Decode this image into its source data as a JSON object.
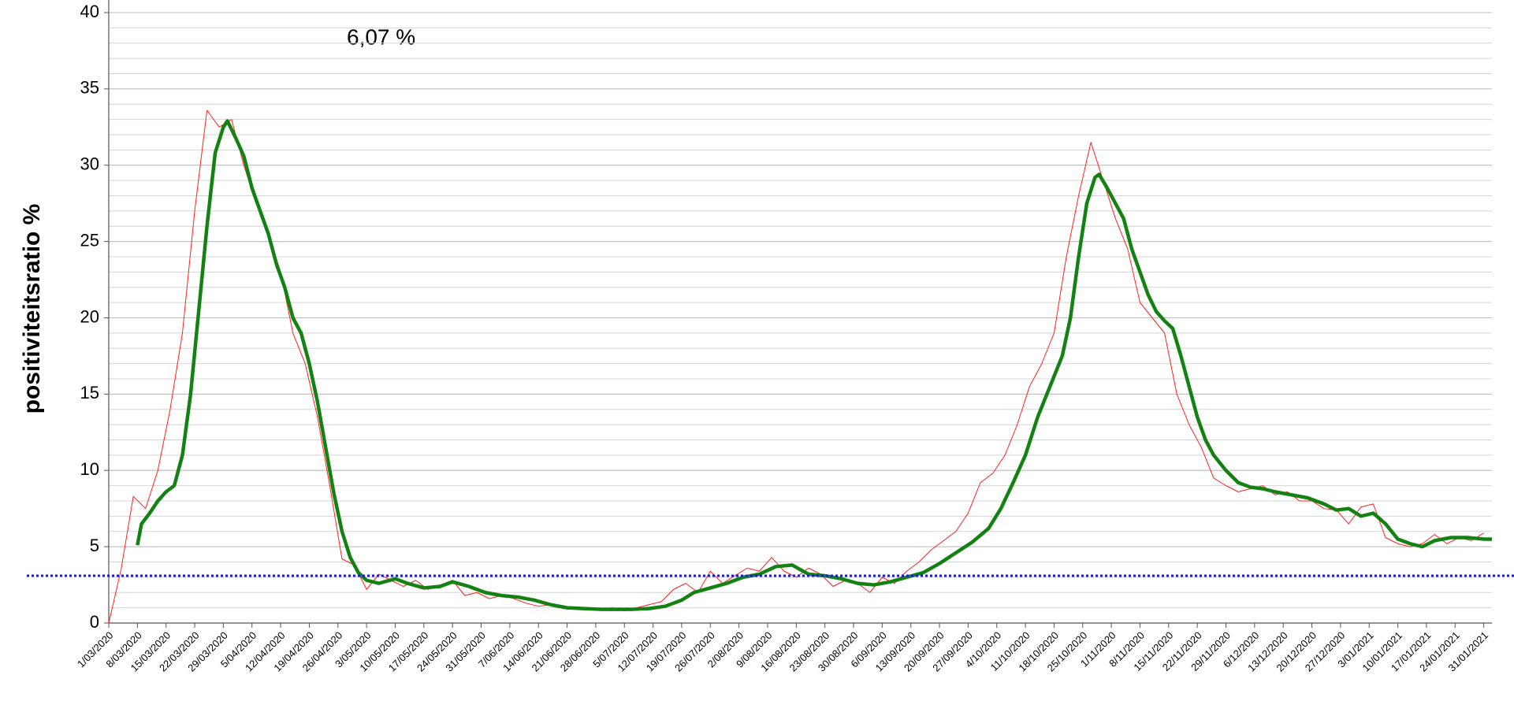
{
  "chart_data": {
    "type": "line",
    "y_label": "positiviteitsratio %",
    "annotation": {
      "text": "6,07 %",
      "color": "#ff1a1a"
    },
    "xlim": [
      0,
      338
    ],
    "xticks": [
      {
        "value": 0,
        "label": "1/03/2020"
      },
      {
        "value": 7,
        "label": "8/03/2020"
      },
      {
        "value": 14,
        "label": "15/03/2020"
      },
      {
        "value": 21,
        "label": "22/03/2020"
      },
      {
        "value": 28,
        "label": "29/03/2020"
      },
      {
        "value": 35,
        "label": "5/04/2020"
      },
      {
        "value": 42,
        "label": "12/04/2020"
      },
      {
        "value": 49,
        "label": "19/04/2020"
      },
      {
        "value": 56,
        "label": "26/04/2020"
      },
      {
        "value": 63,
        "label": "3/05/2020"
      },
      {
        "value": 70,
        "label": "10/05/2020"
      },
      {
        "value": 77,
        "label": "17/05/2020"
      },
      {
        "value": 84,
        "label": "24/05/2020"
      },
      {
        "value": 91,
        "label": "31/05/2020"
      },
      {
        "value": 98,
        "label": "7/06/2020"
      },
      {
        "value": 105,
        "label": "14/06/2020"
      },
      {
        "value": 112,
        "label": "21/06/2020"
      },
      {
        "value": 119,
        "label": "28/06/2020"
      },
      {
        "value": 126,
        "label": "5/07/2020"
      },
      {
        "value": 133,
        "label": "12/07/2020"
      },
      {
        "value": 140,
        "label": "19/07/2020"
      },
      {
        "value": 147,
        "label": "26/07/2020"
      },
      {
        "value": 154,
        "label": "2/08/2020"
      },
      {
        "value": 161,
        "label": "9/08/2020"
      },
      {
        "value": 168,
        "label": "16/08/2020"
      },
      {
        "value": 175,
        "label": "23/08/2020"
      },
      {
        "value": 182,
        "label": "30/08/2020"
      },
      {
        "value": 189,
        "label": "6/09/2020"
      },
      {
        "value": 196,
        "label": "13/09/2020"
      },
      {
        "value": 203,
        "label": "20/09/2020"
      },
      {
        "value": 210,
        "label": "27/09/2020"
      },
      {
        "value": 217,
        "label": "4/10/2020"
      },
      {
        "value": 224,
        "label": "11/10/2020"
      },
      {
        "value": 231,
        "label": "18/10/2020"
      },
      {
        "value": 238,
        "label": "25/10/2020"
      },
      {
        "value": 245,
        "label": "1/11/2020"
      },
      {
        "value": 252,
        "label": "8/11/2020"
      },
      {
        "value": 259,
        "label": "15/11/2020"
      },
      {
        "value": 266,
        "label": "22/11/2020"
      },
      {
        "value": 273,
        "label": "29/11/2020"
      },
      {
        "value": 280,
        "label": "6/12/2020"
      },
      {
        "value": 287,
        "label": "13/12/2020"
      },
      {
        "value": 294,
        "label": "20/12/2020"
      },
      {
        "value": 301,
        "label": "27/12/2020"
      },
      {
        "value": 308,
        "label": "3/01/2021"
      },
      {
        "value": 315,
        "label": "10/01/2021"
      },
      {
        "value": 322,
        "label": "17/01/2021"
      },
      {
        "value": 329,
        "label": "24/01/2021"
      },
      {
        "value": 336,
        "label": "31/01/2021"
      }
    ],
    "ylim": [
      0,
      40
    ],
    "yticks": [
      0,
      5,
      10,
      15,
      20,
      25,
      30,
      35,
      40
    ],
    "grid": true,
    "minor_grid_step": 1,
    "reference_line": {
      "value": 3.1,
      "color": "#1a1ad6"
    },
    "series": [
      {
        "color": "#ff2020",
        "width": 1,
        "x": [
          0,
          3,
          6,
          9,
          12,
          15,
          18,
          21,
          24,
          27,
          30,
          33,
          36,
          39,
          42,
          45,
          48,
          51,
          54,
          57,
          60,
          63,
          66,
          69,
          72,
          75,
          78,
          81,
          84,
          87,
          90,
          93,
          96,
          99,
          102,
          105,
          108,
          111,
          114,
          117,
          120,
          123,
          126,
          129,
          132,
          135,
          138,
          141,
          144,
          147,
          150,
          153,
          156,
          159,
          162,
          165,
          168,
          171,
          174,
          177,
          180,
          183,
          186,
          189,
          192,
          195,
          198,
          201,
          204,
          207,
          210,
          213,
          216,
          219,
          222,
          225,
          228,
          231,
          234,
          237,
          240,
          243,
          246,
          249,
          252,
          255,
          258,
          261,
          264,
          267,
          270,
          273,
          276,
          279,
          282,
          285,
          288,
          291,
          294,
          297,
          300,
          303,
          306,
          309,
          312,
          315,
          318,
          321,
          324,
          327,
          330,
          333,
          336
        ],
        "values": [
          0,
          3.5,
          8.3,
          7.5,
          10,
          14,
          19,
          27,
          33.6,
          32.5,
          33,
          30,
          27.5,
          25.5,
          23,
          19,
          17,
          13.5,
          9,
          4.2,
          3.8,
          2.2,
          3.2,
          2.8,
          2.4,
          2.8,
          2.2,
          2.5,
          2.8,
          1.8,
          2.0,
          1.6,
          1.8,
          1.6,
          1.3,
          1.1,
          1.2,
          1.0,
          1.0,
          0.9,
          0.9,
          1.0,
          0.8,
          1.0,
          1.2,
          1.4,
          2.2,
          2.6,
          2.0,
          3.4,
          2.6,
          3.1,
          3.6,
          3.4,
          4.3,
          3.4,
          3.0,
          3.6,
          3.2,
          2.4,
          2.8,
          2.6,
          2.0,
          3.0,
          2.6,
          3.4,
          4.0,
          4.8,
          5.4,
          6.0,
          7.2,
          9.2,
          9.8,
          11,
          13,
          15.5,
          17,
          19,
          24,
          28,
          31.5,
          29,
          26.5,
          24.5,
          21,
          20,
          19,
          15,
          13,
          11.5,
          9.5,
          9.0,
          8.6,
          8.8,
          9.0,
          8.4,
          8.6,
          8.0,
          8.0,
          7.5,
          7.4,
          6.5,
          7.6,
          7.8,
          5.6,
          5.2,
          5.0,
          5.2,
          5.8,
          5.2,
          5.6,
          5.4,
          5.9
        ]
      },
      {
        "color": "#138213",
        "width": 4.5,
        "x": [
          7,
          8,
          10,
          12,
          14,
          16,
          18,
          20,
          22,
          24,
          26,
          28,
          29,
          31,
          33,
          35,
          37,
          39,
          41,
          43,
          45,
          47,
          49,
          51,
          53,
          55,
          57,
          59,
          61,
          63,
          66,
          70,
          73,
          77,
          81,
          84,
          88,
          92,
          96,
          100,
          104,
          108,
          112,
          116,
          120,
          124,
          128,
          132,
          136,
          140,
          143,
          147,
          151,
          155,
          159,
          163,
          167,
          171,
          175,
          179,
          183,
          187,
          191,
          195,
          199,
          203,
          207,
          211,
          215,
          218,
          221,
          224,
          227,
          230,
          233,
          235,
          237,
          239,
          241,
          242,
          244,
          246,
          248,
          250,
          252,
          254,
          256,
          258,
          260,
          262,
          264,
          266,
          268,
          270,
          273,
          276,
          279,
          282,
          285,
          289,
          293,
          297,
          300,
          303,
          306,
          309,
          312,
          315,
          318,
          321,
          324,
          328,
          332,
          336,
          338
        ],
        "values": [
          5.1,
          6.5,
          7.2,
          8.0,
          8.6,
          9.0,
          11,
          15,
          20.5,
          26,
          30.8,
          32.5,
          32.9,
          31.8,
          30.6,
          28.5,
          27,
          25.5,
          23.5,
          22,
          20,
          19,
          17,
          14.5,
          11.5,
          8.5,
          6,
          4.3,
          3.3,
          2.8,
          2.6,
          2.9,
          2.6,
          2.3,
          2.4,
          2.7,
          2.4,
          2.0,
          1.8,
          1.7,
          1.5,
          1.2,
          1.0,
          0.95,
          0.9,
          0.9,
          0.9,
          0.95,
          1.1,
          1.5,
          2.0,
          2.3,
          2.6,
          3.0,
          3.2,
          3.7,
          3.8,
          3.2,
          3.1,
          2.9,
          2.6,
          2.5,
          2.7,
          3.0,
          3.3,
          3.9,
          4.6,
          5.3,
          6.2,
          7.5,
          9.2,
          11,
          13.5,
          15.5,
          17.5,
          20,
          24,
          27.5,
          29.2,
          29.4,
          28.5,
          27.5,
          26.5,
          24.5,
          23,
          21.5,
          20.4,
          19.8,
          19.3,
          17.5,
          15.5,
          13.5,
          12,
          11,
          10,
          9.2,
          8.9,
          8.8,
          8.6,
          8.4,
          8.2,
          7.8,
          7.4,
          7.5,
          7.0,
          7.2,
          6.5,
          5.5,
          5.2,
          5.0,
          5.4,
          5.6,
          5.6,
          5.5,
          5.5
        ]
      }
    ]
  }
}
